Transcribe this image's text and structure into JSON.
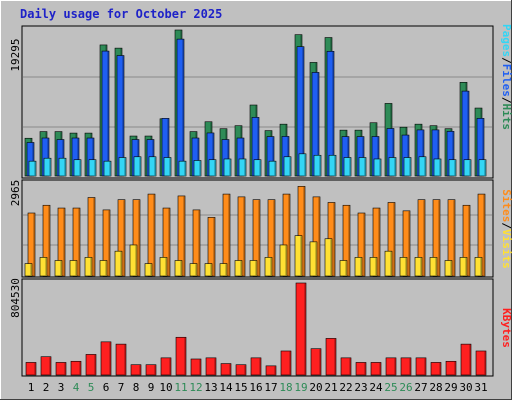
{
  "chart_data": [
    {
      "type": "bar",
      "title": "Daily usage for October 2025",
      "categories": [
        "1",
        "2",
        "3",
        "4",
        "5",
        "6",
        "7",
        "8",
        "9",
        "10",
        "11",
        "12",
        "13",
        "14",
        "15",
        "16",
        "17",
        "18",
        "19",
        "20",
        "21",
        "22",
        "23",
        "24",
        "25",
        "26",
        "27",
        "28",
        "29",
        "30",
        "31"
      ],
      "weekend_days": [
        "4",
        "5",
        "11",
        "12",
        "18",
        "19",
        "25",
        "26"
      ],
      "ymax_label": "19295",
      "ylim": [
        0,
        19295
      ],
      "series": [
        {
          "name": "Hits",
          "color": "#2e8b57",
          "values": [
            4990,
            5870,
            5870,
            5670,
            5670,
            17320,
            16900,
            5280,
            5280,
            7560,
            19295,
            5870,
            7170,
            6250,
            6650,
            9380,
            6000,
            6850,
            18680,
            15010,
            18300,
            6060,
            6060,
            7040,
            9590,
            6450,
            6850,
            6650,
            6250,
            12380,
            8980
          ]
        },
        {
          "name": "Files",
          "color": "#1f5ff2",
          "values": [
            4430,
            5020,
            4820,
            5020,
            5020,
            16510,
            15920,
            4820,
            4820,
            7620,
            18090,
            5020,
            5690,
            4820,
            5020,
            7750,
            5210,
            5230,
            17090,
            13690,
            16480,
            5210,
            5210,
            5220,
            6280,
            5410,
            6090,
            6090,
            5900,
            11220,
            7620
          ]
        },
        {
          "name": "Pages",
          "color": "#33d6f5",
          "values": [
            1960,
            2350,
            2350,
            2150,
            2150,
            1960,
            2440,
            2540,
            2540,
            2440,
            1960,
            2050,
            2150,
            2250,
            2250,
            2150,
            1960,
            2540,
            2930,
            2740,
            2740,
            2440,
            2440,
            2250,
            2440,
            2440,
            2540,
            2250,
            2150,
            2150,
            2150
          ]
        }
      ]
    },
    {
      "type": "bar",
      "ymax_label": "2965",
      "ylim": [
        0,
        2965
      ],
      "series": [
        {
          "name": "Visits",
          "color": "#ff8c1a",
          "values": [
            2030,
            2280,
            2190,
            2190,
            2530,
            2130,
            2460,
            2460,
            2640,
            2190,
            2580,
            2130,
            1890,
            2640,
            2550,
            2460,
            2460,
            2640,
            2890,
            2550,
            2370,
            2280,
            2030,
            2190,
            2370,
            2100,
            2460,
            2460,
            2460,
            2280,
            2640
          ]
        },
        {
          "name": "Sites",
          "color": "#ffe033",
          "values": [
            400,
            600,
            500,
            500,
            600,
            500,
            800,
            1000,
            400,
            600,
            500,
            400,
            400,
            400,
            500,
            500,
            600,
            1000,
            1300,
            1100,
            1200,
            500,
            600,
            600,
            800,
            600,
            600,
            600,
            500,
            600,
            600
          ]
        }
      ]
    },
    {
      "type": "bar",
      "ymax_label": "804530",
      "ylim": [
        0,
        804530
      ],
      "series": [
        {
          "name": "KBytes",
          "color": "#ff2020",
          "values": [
            110000,
            160000,
            110000,
            120000,
            180000,
            290000,
            270000,
            90000,
            90000,
            150000,
            330000,
            140000,
            150000,
            100000,
            90000,
            150000,
            80000,
            210000,
            804530,
            230000,
            320000,
            150000,
            110000,
            110000,
            150000,
            150000,
            150000,
            110000,
            120000,
            270000,
            210000
          ]
        }
      ]
    }
  ],
  "legends": {
    "top": [
      "Pages",
      "/",
      "Files",
      "/",
      "Hits"
    ],
    "middle": [
      "Sites",
      "/",
      "Visits"
    ],
    "bottom": [
      "KBytes"
    ]
  },
  "colors": {
    "title": "#1e22c8",
    "panel_bg": "#c0c0c0",
    "weekday_label": "#000000",
    "weekend_label": "#2e8b57",
    "gridline": "#8a8a8a"
  }
}
